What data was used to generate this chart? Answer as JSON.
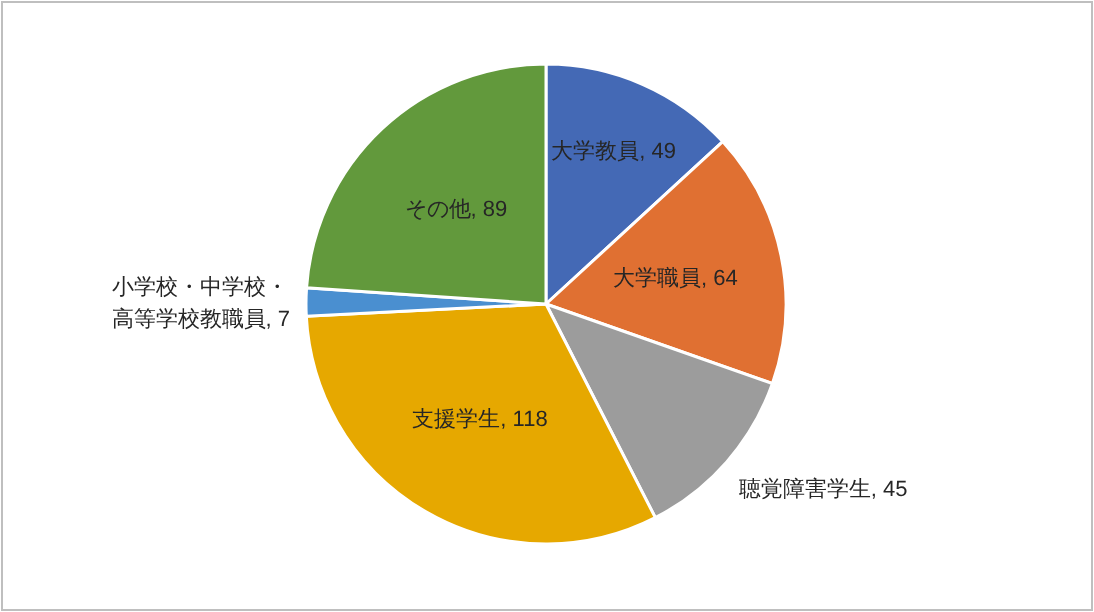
{
  "chart_data": {
    "type": "pie",
    "categories": [
      "大学教員",
      "大学職員",
      "聴覚障害学生",
      "支援学生",
      "小学校・中学校・高等学校教職員",
      "その他"
    ],
    "values": [
      49,
      64,
      45,
      118,
      7,
      89
    ],
    "value_labels": [
      ", 49",
      ", 64",
      ", 45",
      ", 118",
      ", 7",
      ", 89"
    ],
    "colors": [
      "#4469b5",
      "#e07032",
      "#9c9c9c",
      "#e6a800",
      "#4a8fd0",
      "#62993c"
    ]
  }
}
